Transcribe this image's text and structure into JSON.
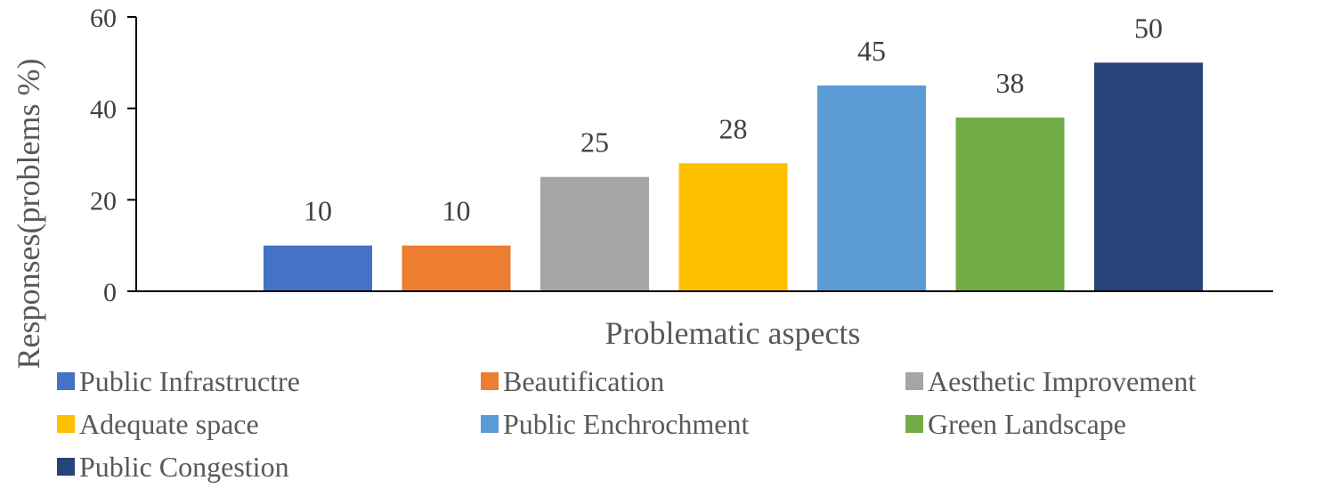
{
  "chart_data": {
    "type": "bar",
    "categories": [
      "Public Infrastructre",
      "Beautification",
      "Aesthetic Improvement",
      "Adequate space",
      "Public Enchrochment",
      "Green Landscape",
      "Public Congestion"
    ],
    "values": [
      10,
      10,
      25,
      28,
      45,
      38,
      50
    ],
    "colors": [
      "#4472c4",
      "#ed7d31",
      "#a5a5a5",
      "#ffc000",
      "#5b9bd5",
      "#70ad47",
      "#264478"
    ],
    "xlabel": "Problematic aspects",
    "ylabel": "Responses(problems %)",
    "ylim": [
      0,
      60
    ],
    "yticks": [
      0,
      20,
      40,
      60
    ],
    "data_labels": true,
    "grid": false,
    "legend_position": "bottom"
  }
}
